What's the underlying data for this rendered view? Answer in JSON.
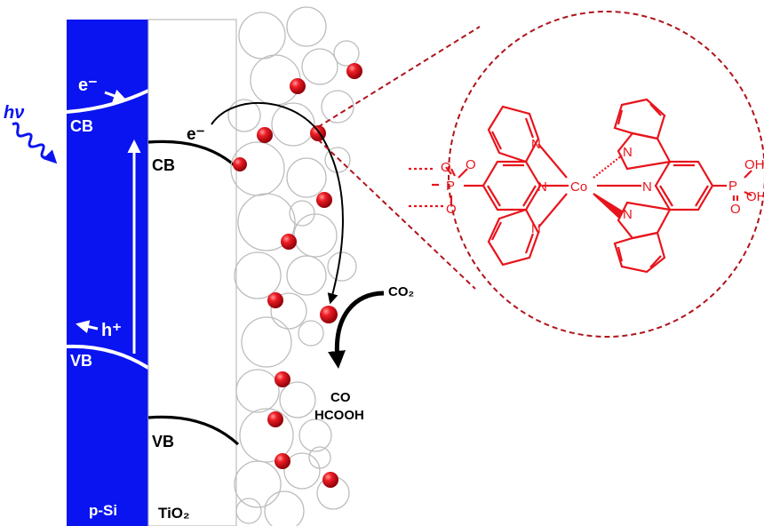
{
  "colors": {
    "silicon": "#0a14f0",
    "catalyst": "#e8141c",
    "bands": "#000000",
    "particle_outline": "#bdbdbd",
    "callout": "#b0141c"
  },
  "labels": {
    "light": "hν",
    "si_cb": "CB",
    "si_vb": "VB",
    "electron_si": "e⁻",
    "hole_si": "h⁺",
    "tio2_cb": "CB",
    "tio2_vb": "VB",
    "electron_tio2": "e⁻",
    "p_si": "p-Si",
    "tio2": "TiO₂",
    "co2": "CO₂",
    "product_co": "CO",
    "product_hcooh": "HCOOH"
  },
  "molecule": {
    "metal": "Co",
    "atoms": {
      "n1": "N",
      "n2": "N",
      "n3": "N",
      "n4": "N",
      "n5": "N",
      "n6": "N",
      "p_left": "P",
      "p_right": "P",
      "o_left_1": "O",
      "o_left_2": "O",
      "o_left_3": "O",
      "o_right_1": "O",
      "oh_right_1": "OH",
      "oh_right_2": "OH"
    }
  }
}
